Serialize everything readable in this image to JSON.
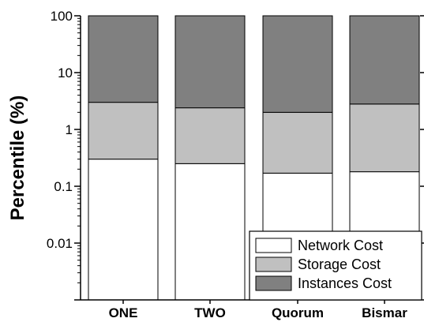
{
  "chart_data": {
    "type": "bar",
    "stacked": true,
    "y_scale": "log",
    "ylim": [
      0.001,
      100
    ],
    "categories": [
      "ONE",
      "TWO",
      "Quorum",
      "Bismar"
    ],
    "series": [
      {
        "name": "Network Cost",
        "color": "#ffffff",
        "values": [
          0.3,
          0.25,
          0.17,
          0.18
        ]
      },
      {
        "name": "Storage Cost",
        "color": "#c0c0c0",
        "values": [
          2.7,
          2.15,
          1.83,
          2.62
        ]
      },
      {
        "name": "Instances Cost",
        "color": "#808080",
        "values": [
          97.0,
          97.6,
          98.0,
          97.2
        ]
      }
    ],
    "cumulative_boundaries": [
      [
        0.3,
        3.0,
        100
      ],
      [
        0.25,
        2.4,
        100
      ],
      [
        0.17,
        2.0,
        100
      ],
      [
        0.18,
        2.8,
        100
      ]
    ],
    "ylabel": "Percentile (%)",
    "xlabel": "",
    "y_ticks": [
      "0.01",
      "0.1",
      "1",
      "10",
      "100"
    ],
    "legend_position": "bottom-right",
    "grid": false
  }
}
